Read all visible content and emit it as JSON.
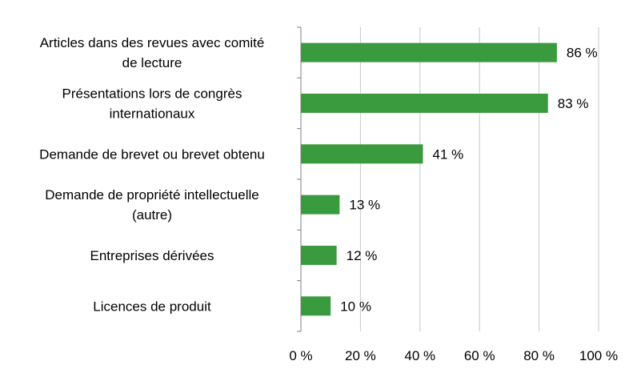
{
  "chart_data": {
    "type": "bar",
    "orientation": "horizontal",
    "title": "",
    "xlabel": "",
    "ylabel": "",
    "categories": [
      [
        "Articles dans des revues avec comité",
        "de lecture"
      ],
      [
        "Présentations lors de congrès",
        "internationaux"
      ],
      [
        "Demande de brevet ou brevet obtenu"
      ],
      [
        "Demande de propriété intellectuelle",
        "(autre)"
      ],
      [
        "Entreprises dérivées"
      ],
      [
        "Licences de produit"
      ]
    ],
    "values": [
      86,
      83,
      41,
      13,
      12,
      10
    ],
    "data_labels": [
      "86 %",
      "83 %",
      "41 %",
      "13 %",
      "12 %",
      "10 %"
    ],
    "xlim": [
      0,
      100
    ],
    "xticks": [
      0,
      20,
      40,
      60,
      80,
      100
    ],
    "xtick_labels": [
      "0 %",
      "20 %",
      "40 %",
      "60 %",
      "80 %",
      "100 %"
    ],
    "grid": true,
    "legend": "none",
    "colors": {
      "bar": "#3a9a3e",
      "grid": "#c8c8c8",
      "axis": "#7f7f7f"
    }
  }
}
